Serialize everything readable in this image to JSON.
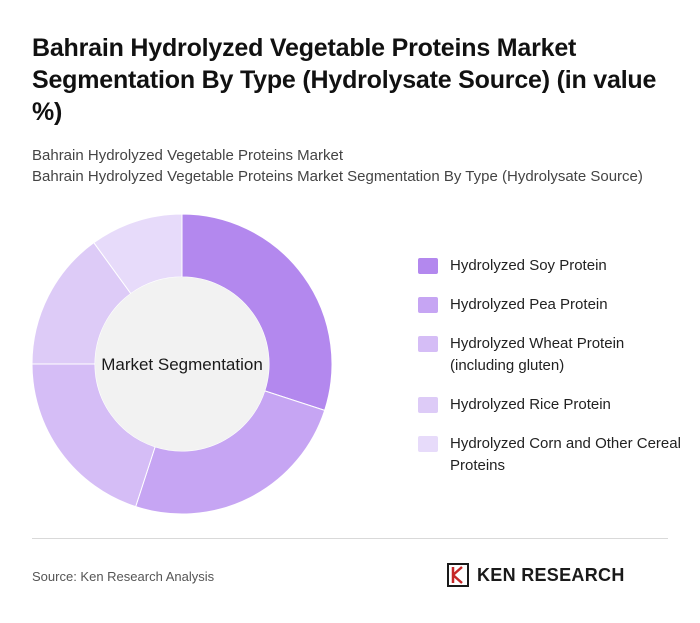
{
  "title": "Bahrain Hydrolyzed Vegetable Proteins Market Segmentation By Type (Hydrolysate Source) (in value %)",
  "subtitle_1": "Bahrain Hydrolyzed Vegetable Proteins Market",
  "subtitle_2": "Bahrain Hydrolyzed Vegetable Proteins Market Segmentation By Type (Hydrolysate Source)",
  "center_label": "Market Segmentation",
  "source": "Source: Ken Research Analysis",
  "logo": {
    "text": "KEN RESEARCH",
    "icon": "ken-research-logo-mark"
  },
  "colors": {
    "soy": "#b388ee",
    "pea": "#c6a5f3",
    "wheat": "#d5bdf6",
    "rice": "#ddcbf7",
    "corn": "#e7dbfa",
    "center": "#f2f2f2"
  },
  "chart_data": {
    "type": "pie",
    "donut": true,
    "categories": [
      "Hydrolyzed Soy Protein",
      "Hydrolyzed Pea Protein",
      "Hydrolyzed Wheat Protein (including gluten)",
      "Hydrolyzed Rice Protein",
      "Hydrolyzed Corn and Other Cereal Proteins"
    ],
    "values": [
      30,
      25,
      20,
      15,
      10
    ],
    "colors": [
      "#b388ee",
      "#c6a5f3",
      "#d5bdf6",
      "#ddcbf7",
      "#e7dbfa"
    ],
    "legend_position": "right"
  }
}
